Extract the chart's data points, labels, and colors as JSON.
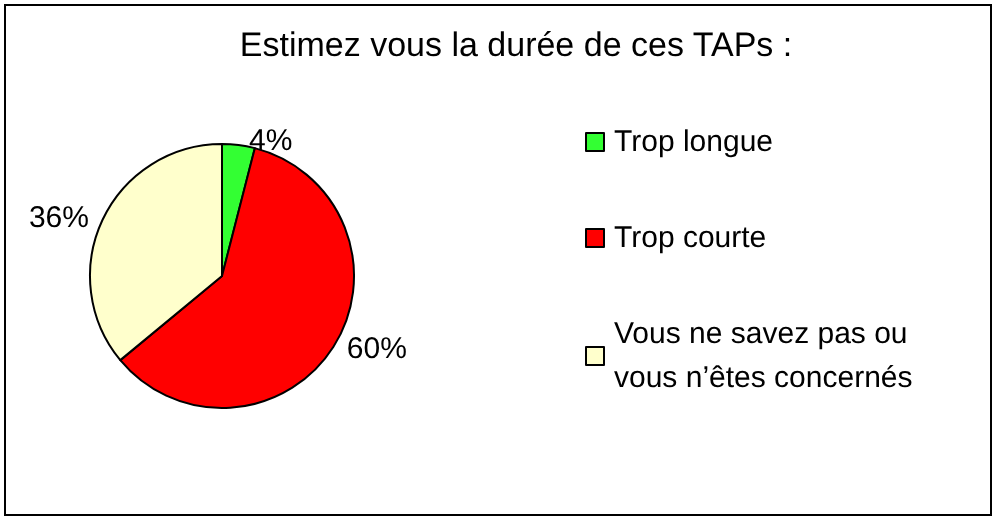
{
  "chart_data": {
    "type": "pie",
    "title": "Estimez vous la durée de ces TAPs :",
    "categories": [
      "Trop longue",
      "Trop courte",
      "Vous ne savez pas ou vous n’êtes concernés"
    ],
    "values": [
      4,
      60,
      36
    ],
    "colors": [
      "#33ff33",
      "#ff0000",
      "#ffffcc"
    ],
    "value_labels": [
      "4%",
      "60%",
      "36%"
    ],
    "legend": "right"
  }
}
